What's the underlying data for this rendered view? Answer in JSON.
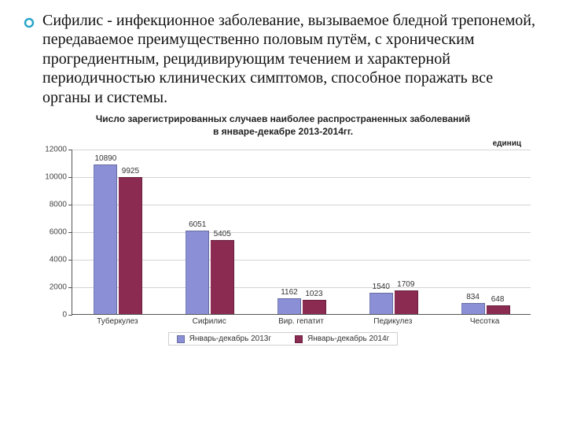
{
  "bullet": {
    "text": "Сифилис - инфекционное заболевание, вызываемое бледной трепонемой, передаваемое преимущественно половым путём, с хроническим прогредиентным, рецидивирующим течением и характерной периодичностью клинических симптомов, способное поражать все органы и системы.",
    "dot_fill": "#ffffff",
    "dot_stroke": "#2aa6c9"
  },
  "chart": {
    "type": "bar",
    "title_l1": "Число зарегистрированных случаев наиболее распространенных заболеваний",
    "title_l2": "в январе-декабре 2013-2014гг.",
    "unit": "единиц",
    "ymax": 12000,
    "ytick_step": 2000,
    "yticks": [
      "0",
      "2000",
      "4000",
      "6000",
      "8000",
      "10000",
      "12000"
    ],
    "categories": [
      "Туберкулез",
      "Сифилис",
      "Вир. гепатит",
      "Педикулез",
      "Чесотка"
    ],
    "series_a": {
      "name": "Январь-декабрь 2013г",
      "color": "#8b90d6",
      "values": [
        10890,
        6051,
        1162,
        1540,
        834
      ]
    },
    "series_b": {
      "name": "Январь-декабрь 2014г",
      "color": "#8b2b52",
      "values": [
        9925,
        5405,
        1023,
        1709,
        648
      ]
    },
    "background": "#ffffff",
    "grid_color": "#d4d4d4",
    "axis_color": "#555555",
    "font_size_axis": 10,
    "font_size_title": 12
  }
}
